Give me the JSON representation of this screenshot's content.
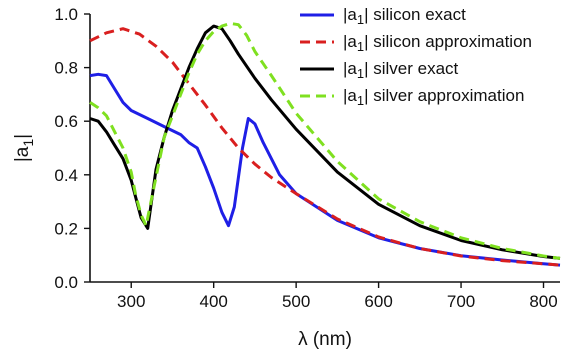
{
  "chart_data": {
    "type": "line",
    "title": "",
    "xlabel": "λ (nm)",
    "ylabel_main": "|a",
    "ylabel_sub": "1",
    "ylabel_end": "|",
    "xlim": [
      250,
      820
    ],
    "ylim": [
      0,
      1.0
    ],
    "x_ticks": [
      300,
      400,
      500,
      600,
      700,
      800
    ],
    "x_tick_labels": [
      "300",
      "400",
      "500",
      "600",
      "700",
      "800"
    ],
    "y_ticks": [
      0,
      0.2,
      0.4,
      0.6,
      0.8,
      1.0
    ],
    "y_tick_labels": [
      "0.0",
      "0.2",
      "0.4",
      "0.6",
      "0.8",
      "1.0"
    ],
    "grid": false,
    "legend_position": "top-right",
    "series": [
      {
        "name_prefix": "|a",
        "name_sub": "1",
        "name_suffix": "| silicon exact",
        "color": "#1f1fe6",
        "dash": "solid",
        "x": [
          250,
          260,
          270,
          280,
          290,
          300,
          320,
          340,
          360,
          370,
          380,
          390,
          400,
          410,
          418,
          425,
          435,
          442,
          450,
          460,
          480,
          500,
          550,
          600,
          650,
          700,
          750,
          800,
          820
        ],
        "y": [
          0.77,
          0.775,
          0.77,
          0.72,
          0.67,
          0.64,
          0.61,
          0.58,
          0.55,
          0.52,
          0.5,
          0.43,
          0.35,
          0.26,
          0.21,
          0.28,
          0.5,
          0.61,
          0.59,
          0.52,
          0.4,
          0.33,
          0.23,
          0.165,
          0.125,
          0.098,
          0.082,
          0.068,
          0.063
        ]
      },
      {
        "name_prefix": "|a",
        "name_sub": "1",
        "name_suffix": "| silicon approximation",
        "color": "#d91f1f",
        "dash": "dashed",
        "x": [
          250,
          270,
          290,
          310,
          330,
          350,
          370,
          390,
          410,
          430,
          450,
          470,
          500,
          550,
          600,
          650,
          700,
          750,
          800,
          820
        ],
        "y": [
          0.9,
          0.93,
          0.945,
          0.925,
          0.88,
          0.82,
          0.74,
          0.66,
          0.575,
          0.5,
          0.44,
          0.39,
          0.33,
          0.235,
          0.168,
          0.125,
          0.097,
          0.08,
          0.068,
          0.063
        ]
      },
      {
        "name_prefix": "|a",
        "name_sub": "1",
        "name_suffix": "| silver exact",
        "color": "#000000",
        "dash": "solid",
        "x": [
          250,
          260,
          270,
          280,
          290,
          300,
          305,
          312,
          320,
          330,
          340,
          350,
          360,
          370,
          380,
          390,
          400,
          410,
          420,
          430,
          450,
          470,
          500,
          550,
          600,
          650,
          700,
          750,
          800,
          820
        ],
        "y": [
          0.61,
          0.6,
          0.56,
          0.51,
          0.46,
          0.38,
          0.32,
          0.24,
          0.2,
          0.42,
          0.54,
          0.64,
          0.72,
          0.8,
          0.87,
          0.93,
          0.955,
          0.945,
          0.9,
          0.85,
          0.76,
          0.68,
          0.57,
          0.41,
          0.29,
          0.21,
          0.155,
          0.12,
          0.095,
          0.088
        ]
      },
      {
        "name_prefix": "|a",
        "name_sub": "1",
        "name_suffix": "| silver approximation",
        "color": "#7fe020",
        "dash": "dashed",
        "x": [
          250,
          260,
          270,
          280,
          290,
          300,
          305,
          312,
          318,
          328,
          340,
          350,
          360,
          370,
          380,
          390,
          400,
          410,
          420,
          430,
          440,
          450,
          470,
          500,
          550,
          600,
          650,
          700,
          750,
          800,
          820
        ],
        "y": [
          0.67,
          0.65,
          0.62,
          0.56,
          0.5,
          0.41,
          0.33,
          0.25,
          0.21,
          0.36,
          0.54,
          0.62,
          0.7,
          0.78,
          0.85,
          0.9,
          0.935,
          0.955,
          0.965,
          0.96,
          0.92,
          0.86,
          0.77,
          0.63,
          0.45,
          0.31,
          0.225,
          0.165,
          0.125,
          0.097,
          0.088
        ]
      }
    ]
  }
}
